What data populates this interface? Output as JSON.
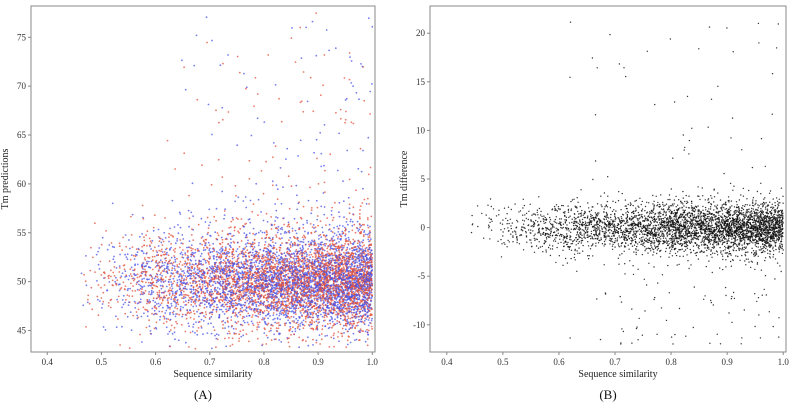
{
  "chart_data": [
    {
      "type": "scatter",
      "panel_label": "(A)",
      "xlabel": "Sequence similarity",
      "ylabel": "Tm predictions",
      "xlim": [
        0.37,
        1.005
      ],
      "ylim": [
        42.8,
        78.2
      ],
      "xticks": [
        "0.4",
        "0.5",
        "0.6",
        "0.7",
        "0.8",
        "0.9",
        "1.0"
      ],
      "yticks": [
        "45",
        "50",
        "55",
        "60",
        "65",
        "70",
        "75"
      ],
      "grid": false,
      "colors": [
        "#e1503a",
        "#4a52e6"
      ],
      "series": [
        {
          "color": "#e1503a",
          "points_approx": 5200
        },
        {
          "color": "#4a52e6",
          "points_approx": 5200
        }
      ],
      "cluster": {
        "x_range": [
          0.45,
          1.0
        ],
        "y_center": 50.0,
        "y_spread": 2.3,
        "outliers_y_range": [
          55,
          77.5
        ],
        "note_density": "increasing toward x=1.0"
      }
    },
    {
      "type": "scatter",
      "panel_label": "(B)",
      "xlabel": "Sequence similarity",
      "ylabel": "Tm difference",
      "xlim": [
        0.37,
        1.005
      ],
      "ylim": [
        -12.8,
        22.8
      ],
      "xticks": [
        "0.4",
        "0.5",
        "0.6",
        "0.7",
        "0.8",
        "0.9",
        "1.0"
      ],
      "yticks": [
        "-10",
        "-5",
        "0",
        "5",
        "10",
        "15",
        "20"
      ],
      "grid": false,
      "colors": [
        "#111111"
      ],
      "series": [
        {
          "color": "#111111",
          "points_approx": 5000
        }
      ],
      "cluster": {
        "x_range": [
          0.43,
          1.0
        ],
        "y_center": 0.0,
        "y_spread": 1.2,
        "outliers_y_range": [
          -12,
          21.5
        ],
        "note_density": "increasing toward x=1.0"
      }
    }
  ]
}
